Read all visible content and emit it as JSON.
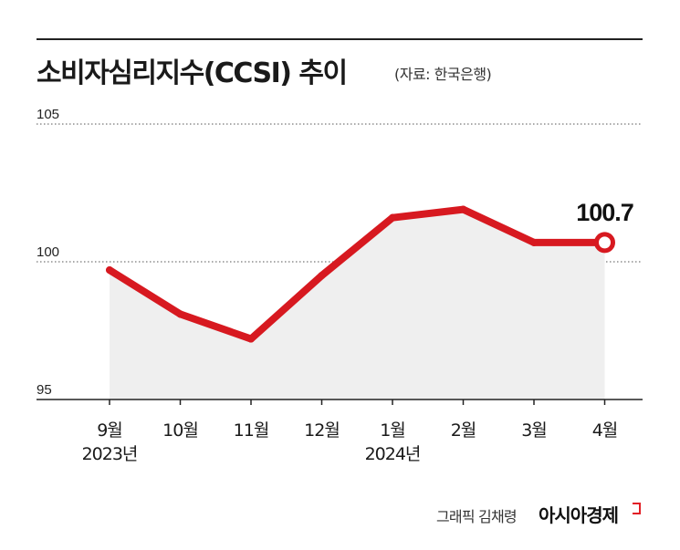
{
  "header": {
    "title": "소비자심리지수(CCSI) 추이",
    "source": "(자료: 한국은행)"
  },
  "footer": {
    "credit": "그래픽 김채령",
    "brand": "아시아경제"
  },
  "chart_data": {
    "type": "area",
    "title": "소비자심리지수(CCSI) 추이",
    "categories": [
      "9월",
      "10월",
      "11월",
      "12월",
      "1월",
      "2월",
      "3월",
      "4월"
    ],
    "year_labels": [
      {
        "category_index": 0,
        "text": "2023년"
      },
      {
        "category_index": 4,
        "text": "2024년"
      }
    ],
    "series": [
      {
        "values": [
          99.7,
          98.1,
          97.2,
          99.5,
          101.6,
          101.9,
          100.7,
          100.7
        ]
      }
    ],
    "ylim": [
      95,
      105
    ],
    "yticks": [
      95,
      100,
      105
    ],
    "annotations": [
      {
        "category_index": 7,
        "text": "100.7"
      }
    ],
    "line_color": "#d71920",
    "fill_color": "#efefef",
    "grid": "dotted at 100 and 105"
  }
}
